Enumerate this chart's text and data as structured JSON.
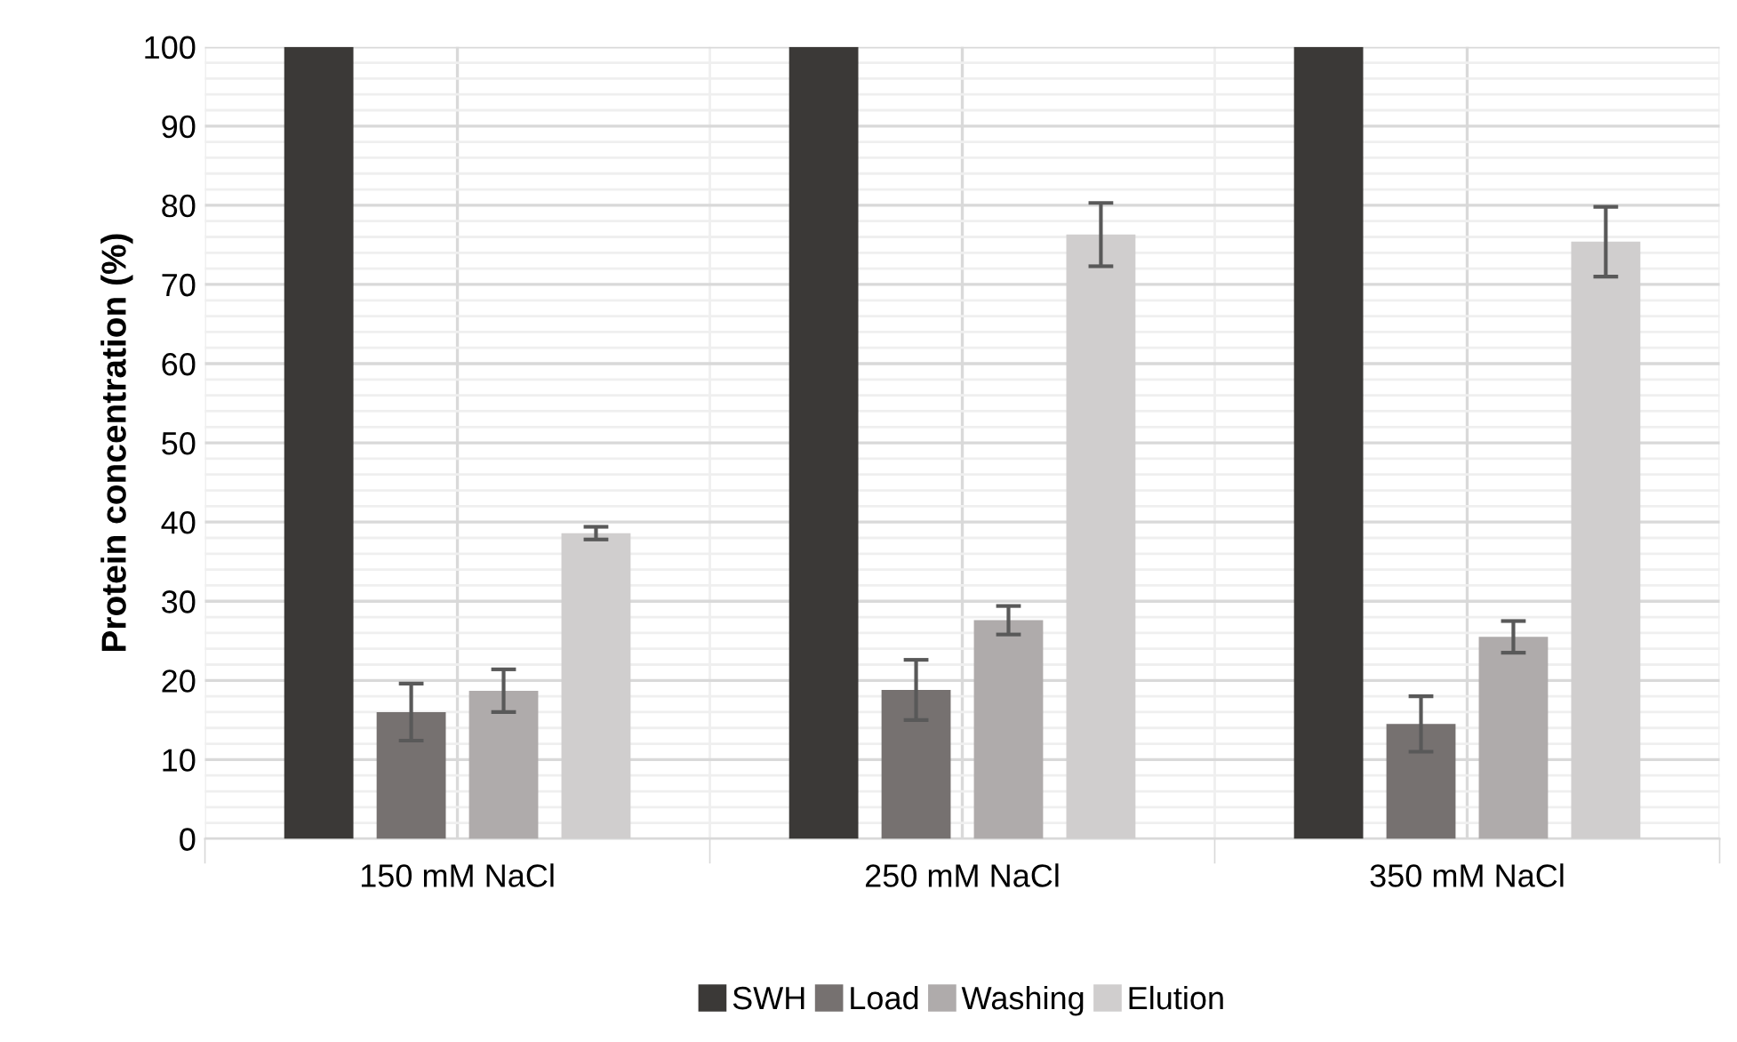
{
  "chart_data": {
    "type": "bar",
    "ylabel": "Protein concentration (%)",
    "categories": [
      "150 mM NaCl",
      "250 mM NaCl",
      "350 mM NaCl"
    ],
    "series": [
      {
        "name": "SWH",
        "color": "#3b3937",
        "values": [
          100,
          100,
          100
        ]
      },
      {
        "name": "Load",
        "color": "#767170",
        "values": [
          16,
          18.8,
          14.5
        ],
        "errors": [
          3.6,
          3.8,
          3.5
        ]
      },
      {
        "name": "Washing",
        "color": "#afabab",
        "values": [
          18.7,
          27.6,
          25.5
        ],
        "errors": [
          2.7,
          1.8,
          2
        ]
      },
      {
        "name": "Elution",
        "color": "#d0cece",
        "values": [
          38.6,
          76.3,
          75.4
        ],
        "errors": [
          0.8,
          4,
          4.4
        ]
      }
    ],
    "ylim": [
      0,
      100
    ],
    "yticks": [
      0,
      10,
      20,
      30,
      40,
      50,
      60,
      70,
      80,
      90,
      100
    ],
    "grid": true,
    "legend": "bottom"
  }
}
